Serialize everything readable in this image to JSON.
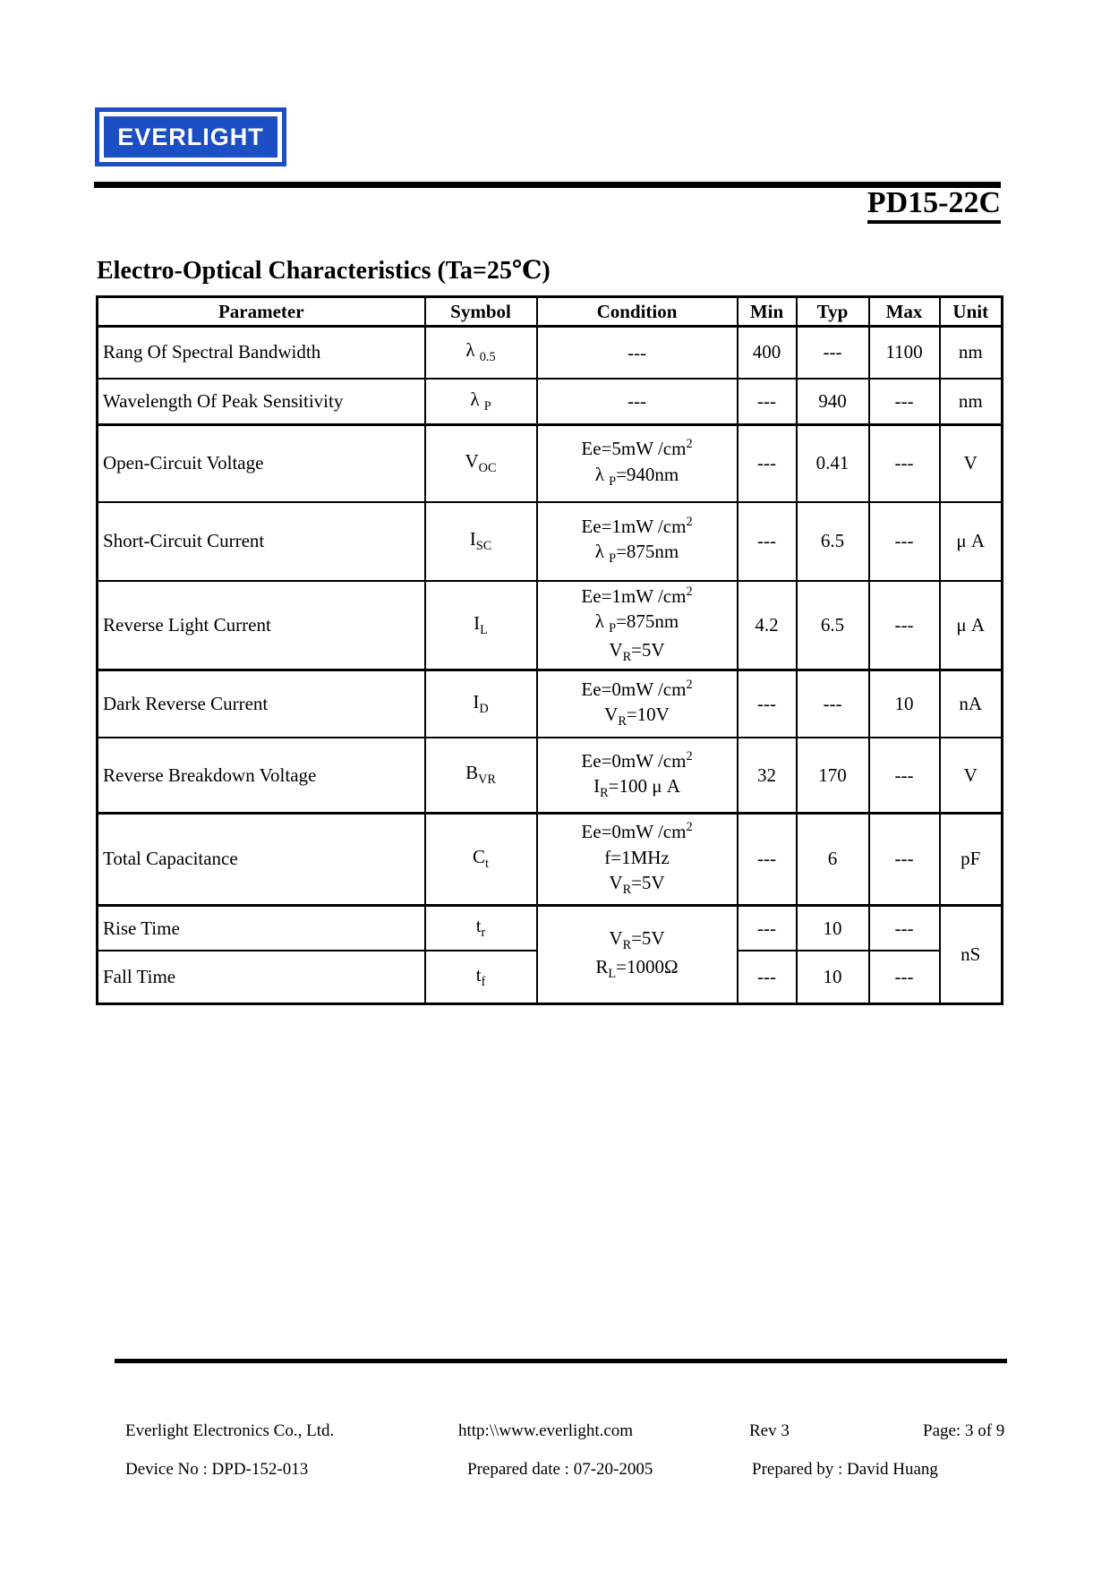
{
  "logo": {
    "text": "EVERLIGHT"
  },
  "header": {
    "part_number": "PD15-22C"
  },
  "section": {
    "title": "Electro-Optical Characteristics (Ta=25℃)"
  },
  "table": {
    "headers": [
      "Parameter",
      "Symbol",
      "Condition",
      "Min",
      "Typ",
      "Max",
      "Unit"
    ],
    "rows": [
      {
        "parameter": "Rang Of Spectral Bandwidth",
        "symbol": "λ _{0.5}",
        "condition": [
          "---"
        ],
        "min": "400",
        "typ": "---",
        "max": "1100",
        "unit": "nm"
      },
      {
        "parameter": "Wavelength Of Peak Sensitivity",
        "symbol": "λ _{P}",
        "condition": [
          "---"
        ],
        "min": "---",
        "typ": "940",
        "max": "---",
        "unit": "nm"
      },
      {
        "parameter": "Open-Circuit Voltage",
        "symbol": "V_{OC}",
        "condition": [
          "Ee=5mW /cm^{2}",
          "λ _{P}=940nm"
        ],
        "min": "---",
        "typ": "0.41",
        "max": "---",
        "unit": "V"
      },
      {
        "parameter": "Short-Circuit Current",
        "symbol": "I_{SC}",
        "condition": [
          "Ee=1mW /cm^{2}",
          "λ _{P}=875nm"
        ],
        "min": "---",
        "typ": "6.5",
        "max": "---",
        "unit": "μ A"
      },
      {
        "parameter": "Reverse Light Current",
        "symbol": "I_{L}",
        "condition": [
          "Ee=1mW /cm^{2}",
          "λ _{P}=875nm",
          "V_{R}=5V"
        ],
        "min": "4.2",
        "typ": "6.5",
        "max": "---",
        "unit": "μ A"
      },
      {
        "parameter": "Dark Reverse Current",
        "symbol": "I_{D}",
        "condition": [
          "Ee=0mW /cm^{2}",
          "V_{R}=10V"
        ],
        "min": "---",
        "typ": "---",
        "max": "10",
        "unit": "nA"
      },
      {
        "parameter": "Reverse Breakdown Voltage",
        "symbol": "B_{VR}",
        "condition": [
          "Ee=0mW /cm^{2}",
          "I_{R}=100 μ A"
        ],
        "min": "32",
        "typ": "170",
        "max": "---",
        "unit": "V"
      },
      {
        "parameter": "Total Capacitance",
        "symbol": "C_{t}",
        "condition": [
          "Ee=0mW /cm^{2}",
          "f=1MHz",
          "V_{R}=5V"
        ],
        "min": "---",
        "typ": "6",
        "max": "---",
        "unit": "pF"
      },
      {
        "parameter": "Rise Time",
        "symbol": "t_{r}",
        "condition": [
          "V_{R}=5V",
          "R_{L}=1000Ω"
        ],
        "condition_rowspan": 2,
        "min": "---",
        "typ": "10",
        "max": "---",
        "unit": "nS",
        "unit_rowspan": 2
      },
      {
        "parameter": "Fall Time",
        "symbol": "t_{f}",
        "min": "---",
        "typ": "10",
        "max": "---"
      }
    ]
  },
  "footer": {
    "company": "Everlight Electronics Co., Ltd.",
    "website": "http:\\\\www.everlight.com",
    "revision": "Rev 3",
    "page": "Page: 3 of 9",
    "device_no": "Device No : DPD-152-013",
    "prepared_date": "Prepared date : 07-20-2005",
    "prepared_by": "Prepared by : David Huang"
  },
  "colors": {
    "logo_blue": "#1d4fc4",
    "text": "#000000"
  }
}
